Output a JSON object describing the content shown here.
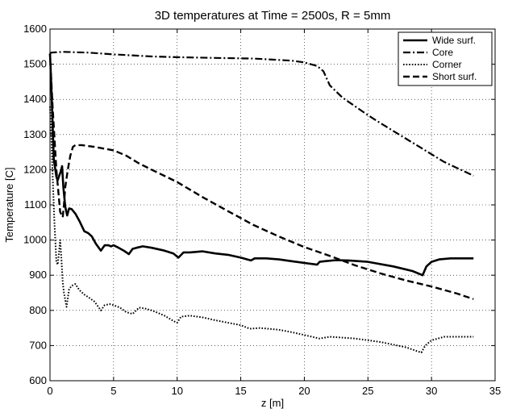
{
  "chart_data": {
    "type": "line",
    "title": "3D temperatures at Time = 2500s, R = 5mm",
    "xlabel": "z [m]",
    "ylabel": "Temperature [C]",
    "xlim": [
      0,
      35
    ],
    "ylim": [
      600,
      1600
    ],
    "xticks": [
      0,
      5,
      10,
      15,
      20,
      25,
      30,
      35
    ],
    "yticks": [
      600,
      700,
      800,
      900,
      1000,
      1100,
      1200,
      1300,
      1400,
      1500,
      1600
    ],
    "grid": true,
    "legend_position": "top-right",
    "series": [
      {
        "name": "Wide surf.",
        "style": "solid",
        "color": "#000000",
        "x": [
          0,
          0.1,
          0.3,
          0.5,
          0.6,
          0.7,
          0.85,
          0.95,
          1.05,
          1.2,
          1.35,
          1.5,
          1.7,
          2,
          2.3,
          2.7,
          3,
          3.3,
          3.6,
          4,
          4.3,
          4.6,
          4.8,
          5,
          5.4,
          5.8,
          6.2,
          6.5,
          6.8,
          7.3,
          8,
          9,
          9.7,
          10.1,
          10.5,
          11,
          12,
          13,
          14,
          15,
          15.8,
          16.1,
          16.5,
          17,
          18,
          19,
          20,
          21,
          21.2,
          21.6,
          22.5,
          23.5,
          25,
          27,
          28.5,
          29.3,
          29.6,
          30,
          30.6,
          31.5,
          33.3
        ],
        "y": [
          1530,
          1440,
          1230,
          1180,
          1170,
          1180,
          1195,
          1210,
          1150,
          1095,
          1070,
          1090,
          1088,
          1075,
          1055,
          1025,
          1020,
          1010,
          990,
          970,
          985,
          985,
          982,
          985,
          978,
          970,
          960,
          975,
          978,
          982,
          978,
          970,
          962,
          950,
          965,
          965,
          968,
          962,
          958,
          950,
          942,
          948,
          948,
          948,
          945,
          940,
          935,
          930,
          938,
          940,
          943,
          942,
          938,
          925,
          912,
          900,
          925,
          938,
          945,
          948,
          948
        ]
      },
      {
        "name": "Core",
        "style": "dashdot",
        "color": "#000000",
        "x": [
          0,
          0.1,
          1,
          3,
          5,
          8,
          10,
          13,
          16,
          19,
          20,
          21,
          21.5,
          22,
          23,
          24,
          25,
          26,
          27,
          28,
          29,
          30,
          31,
          32,
          33.3
        ],
        "y": [
          1530,
          1533,
          1535,
          1533,
          1528,
          1522,
          1520,
          1518,
          1516,
          1510,
          1505,
          1495,
          1480,
          1440,
          1405,
          1380,
          1355,
          1332,
          1310,
          1288,
          1266,
          1244,
          1222,
          1205,
          1183
        ]
      },
      {
        "name": "Corner",
        "style": "dotted",
        "color": "#000000",
        "x": [
          0,
          0.1,
          0.2,
          0.35,
          0.5,
          0.6,
          0.7,
          0.8,
          0.9,
          1.0,
          1.1,
          1.3,
          1.5,
          1.7,
          2.0,
          2.3,
          2.7,
          3.0,
          3.5,
          4.0,
          4.3,
          4.7,
          5.0,
          5.5,
          6.0,
          6.5,
          7.0,
          7.5,
          8.0,
          9.0,
          9.7,
          10.0,
          10.3,
          11.0,
          12.0,
          13.0,
          14.0,
          15.0,
          15.7,
          16.5,
          18.0,
          19.0,
          20.0,
          21.2,
          22.0,
          24.0,
          26.0,
          28.0,
          29.2,
          29.5,
          30.0,
          31.0,
          33.3
        ],
        "y": [
          1380,
          1300,
          1190,
          1050,
          940,
          930,
          960,
          1000,
          945,
          880,
          850,
          810,
          860,
          870,
          875,
          858,
          845,
          838,
          825,
          800,
          815,
          818,
          815,
          808,
          795,
          790,
          808,
          805,
          800,
          785,
          770,
          765,
          782,
          785,
          780,
          772,
          765,
          758,
          748,
          750,
          745,
          738,
          730,
          720,
          725,
          720,
          710,
          695,
          680,
          700,
          715,
          725,
          725
        ]
      },
      {
        "name": "Short surf.",
        "style": "dashed",
        "color": "#000000",
        "x": [
          0,
          0.2,
          0.5,
          0.8,
          1.0,
          1.1,
          1.2,
          1.4,
          1.6,
          1.8,
          2.0,
          2.5,
          3.5,
          5.0,
          6.0,
          7.0,
          8.0,
          10.0,
          12.0,
          14.0,
          16.0,
          18.0,
          20.0,
          22.0,
          24.0,
          26.0,
          28.0,
          30.0,
          32.0,
          33.3
        ],
        "y": [
          1530,
          1380,
          1200,
          1080,
          1065,
          1100,
          1150,
          1200,
          1240,
          1265,
          1270,
          1270,
          1265,
          1255,
          1240,
          1218,
          1200,
          1165,
          1122,
          1082,
          1043,
          1010,
          980,
          955,
          928,
          905,
          885,
          868,
          848,
          832
        ]
      }
    ]
  }
}
